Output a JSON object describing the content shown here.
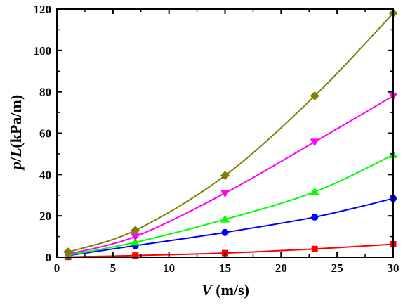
{
  "chart_data": {
    "type": "scatter",
    "title": "",
    "xlabel": {
      "var": "V",
      "unit": " (m/s)"
    },
    "ylabel": {
      "var1": "p",
      "slash": "/",
      "var2": "L",
      "unit": "(kPa/m)"
    },
    "xlim": [
      0,
      30
    ],
    "ylim": [
      0,
      120
    ],
    "xticks": [
      0,
      5,
      10,
      15,
      20,
      25,
      30
    ],
    "yticks": [
      0,
      20,
      40,
      60,
      80,
      100,
      120
    ],
    "grid": false,
    "legend": "none",
    "x": [
      1,
      7,
      15,
      23,
      30
    ],
    "series": [
      {
        "marker": "square",
        "color": "#ff0000",
        "values": [
          0.1,
          0.8,
          2.0,
          4.0,
          6.3
        ]
      },
      {
        "marker": "circle",
        "color": "#0000ff",
        "values": [
          0.8,
          5.6,
          12.0,
          19.4,
          28.4
        ]
      },
      {
        "marker": "triangle-up",
        "color": "#00ff00",
        "values": [
          1.0,
          7.2,
          18.3,
          31.6,
          49.5
        ]
      },
      {
        "marker": "triangle-down",
        "color": "#ff00ff",
        "values": [
          1.5,
          10.0,
          31.0,
          55.8,
          78.0
        ]
      },
      {
        "marker": "diamond",
        "color": "#808000",
        "values": [
          2.5,
          13.0,
          39.5,
          78.0,
          118.0
        ]
      }
    ]
  }
}
